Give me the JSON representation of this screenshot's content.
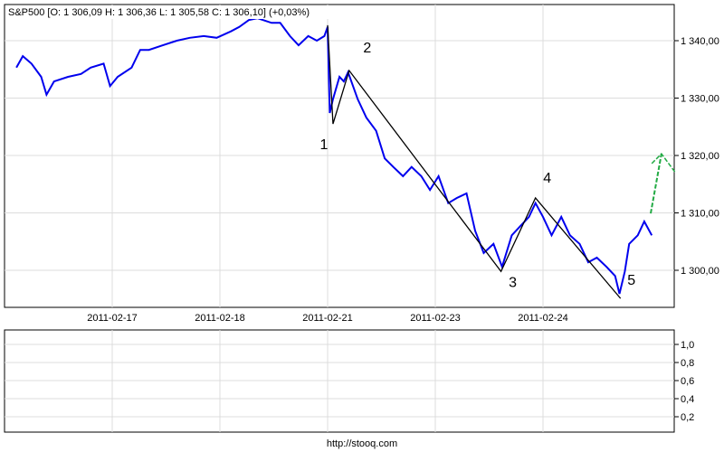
{
  "chart_data": [
    {
      "type": "line",
      "title": "S&P500 [O: 1 306,09  H: 1 306,36  L: 1 305,58  C: 1 306,10] (+0,03%)",
      "xlabel": "",
      "ylabel": "",
      "ylim": [
        1294,
        1346
      ],
      "grid": true,
      "x_ticks": [
        {
          "x": 1,
          "label": "2011-02-17"
        },
        {
          "x": 2,
          "label": "2011-02-18"
        },
        {
          "x": 3,
          "label": "2011-02-21"
        },
        {
          "x": 4,
          "label": "2011-02-23"
        },
        {
          "x": 5,
          "label": "2011-02-24"
        }
      ],
      "y_ticks": [
        {
          "v": 1340,
          "label": "1 340,00"
        },
        {
          "v": 1330,
          "label": "1 330,00"
        },
        {
          "v": 1320,
          "label": "1 320,00"
        },
        {
          "v": 1310,
          "label": "1 310,00"
        },
        {
          "v": 1300,
          "label": "1 300,00"
        }
      ],
      "series": [
        {
          "color": "#0000ee",
          "points": [
            [
              0.11,
              1335.3
            ],
            [
              0.17,
              1337.3
            ],
            [
              0.25,
              1336
            ],
            [
              0.34,
              1333.7
            ],
            [
              0.39,
              1330.6
            ],
            [
              0.46,
              1332.9
            ],
            [
              0.59,
              1333.7
            ],
            [
              0.71,
              1334.2
            ],
            [
              0.8,
              1335.3
            ],
            [
              0.92,
              1336
            ],
            [
              0.98,
              1332.1
            ],
            [
              1.05,
              1333.7
            ],
            [
              1.18,
              1335.3
            ],
            [
              1.26,
              1338.4
            ],
            [
              1.34,
              1338.4
            ],
            [
              1.47,
              1339.2
            ],
            [
              1.6,
              1340
            ],
            [
              1.72,
              1340.5
            ],
            [
              1.85,
              1340.8
            ],
            [
              1.97,
              1340.5
            ],
            [
              2.1,
              1341.6
            ],
            [
              2.18,
              1342.4
            ],
            [
              2.27,
              1343.6
            ],
            [
              2.35,
              1343.9
            ],
            [
              2.48,
              1343.1
            ],
            [
              2.56,
              1343.1
            ],
            [
              2.65,
              1340.8
            ],
            [
              2.73,
              1339.2
            ],
            [
              2.82,
              1340.8
            ],
            [
              2.9,
              1340
            ],
            [
              2.97,
              1340.8
            ],
            [
              3.0,
              1342.4
            ],
            [
              3.02,
              1327.4
            ],
            [
              3.05,
              1329.8
            ],
            [
              3.11,
              1333.7
            ],
            [
              3.15,
              1332.9
            ],
            [
              3.19,
              1334.5
            ],
            [
              3.28,
              1329.8
            ],
            [
              3.36,
              1326.6
            ],
            [
              3.45,
              1324.3
            ],
            [
              3.53,
              1319.5
            ],
            [
              3.61,
              1318
            ],
            [
              3.7,
              1316.4
            ],
            [
              3.78,
              1318
            ],
            [
              3.87,
              1316.4
            ],
            [
              3.95,
              1314
            ],
            [
              4.03,
              1316.4
            ],
            [
              4.12,
              1311.7
            ],
            [
              4.2,
              1312.6
            ],
            [
              4.29,
              1313.4
            ],
            [
              4.37,
              1306.9
            ],
            [
              4.45,
              1303
            ],
            [
              4.54,
              1304.6
            ],
            [
              4.62,
              1300.6
            ],
            [
              4.71,
              1306.1
            ],
            [
              4.79,
              1307.7
            ],
            [
              4.87,
              1309.3
            ],
            [
              4.93,
              1311.7
            ],
            [
              5.0,
              1309.3
            ],
            [
              5.08,
              1306.1
            ],
            [
              5.17,
              1309.3
            ],
            [
              5.25,
              1306.1
            ],
            [
              5.34,
              1304.6
            ],
            [
              5.42,
              1301.4
            ],
            [
              5.5,
              1302.2
            ],
            [
              5.59,
              1300.6
            ],
            [
              5.67,
              1299
            ],
            [
              5.71,
              1295.9
            ],
            [
              5.76,
              1299.8
            ],
            [
              5.8,
              1304.6
            ],
            [
              5.88,
              1306.1
            ],
            [
              5.94,
              1308.5
            ],
            [
              6.01,
              1306.1
            ]
          ]
        }
      ],
      "annotations": {
        "wave_color": "#000000",
        "wave_points": [
          [
            3.0,
            1342.7
          ],
          [
            3.05,
            1325.5
          ],
          [
            3.2,
            1334.8
          ],
          [
            4.61,
            1299.8
          ],
          [
            4.93,
            1312.6
          ],
          [
            5.72,
            1295.1
          ]
        ],
        "wave_labels": [
          "1",
          "2",
          "3",
          "4",
          "5"
        ],
        "projection_color": "#22aa44",
        "projection_line": [
          [
            6.0,
            1309.9
          ],
          [
            6.1,
            1320.3
          ]
        ],
        "projection_head": [
          [
            6.01,
            1318.6
          ],
          [
            6.1,
            1320.3
          ],
          [
            6.23,
            1317
          ]
        ]
      }
    },
    {
      "type": "line",
      "ylim": [
        0,
        1.1
      ],
      "grid": true,
      "y_ticks": [
        {
          "v": 1.0,
          "label": "1,0"
        },
        {
          "v": 0.8,
          "label": "0,8"
        },
        {
          "v": 0.6,
          "label": "0,6"
        },
        {
          "v": 0.4,
          "label": "0,4"
        },
        {
          "v": 0.2,
          "label": "0,2"
        }
      ],
      "series": []
    }
  ],
  "footer": {
    "link": "http://stooq.com"
  }
}
